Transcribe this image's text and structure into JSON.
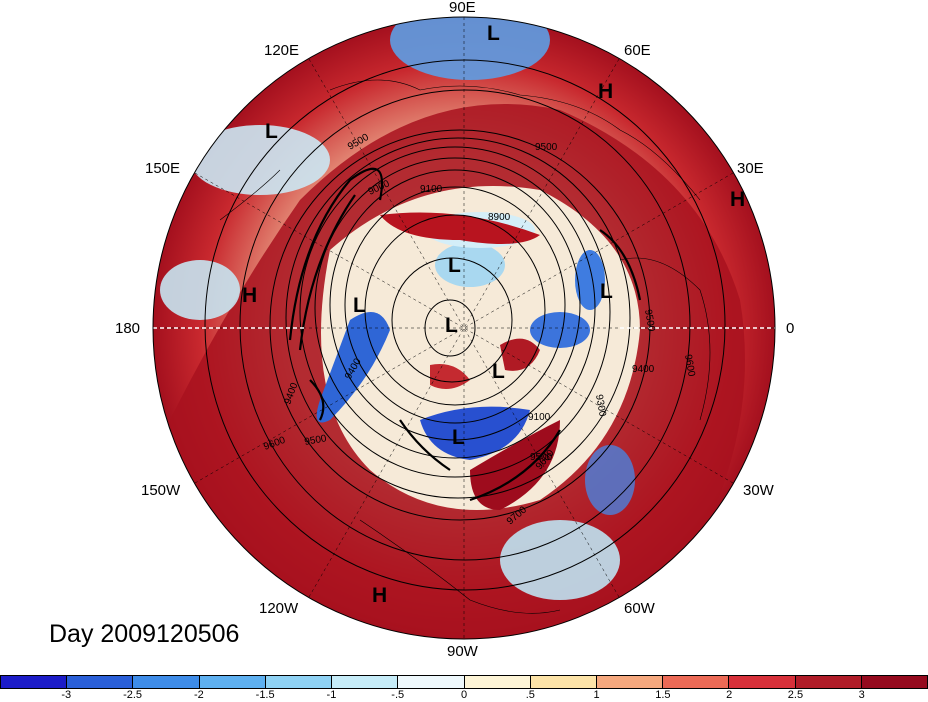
{
  "map": {
    "projection": "polar stereographic (North Pole)",
    "longitude_labels": [
      "90E",
      "60E",
      "30E",
      "0",
      "30W",
      "60W",
      "90W",
      "120W",
      "150W",
      "180",
      "150E",
      "120E"
    ],
    "pressure_systems": [
      "L",
      "H",
      "L",
      "H",
      "H",
      "L",
      "L",
      "L",
      "L",
      "L",
      "L",
      "H"
    ],
    "contour_labels": [
      "9500",
      "9500",
      "9000",
      "9100",
      "8900",
      "9500",
      "9600",
      "9400",
      "9300",
      "9400",
      "9500",
      "9600",
      "9400",
      "9500",
      "9600",
      "9700",
      "9100"
    ],
    "day_label": "Day 2009120506"
  },
  "colorbar": {
    "ticks": [
      "-3",
      "-2.5",
      "-2",
      "-1.5",
      "-1",
      "-.5",
      "0",
      ".5",
      "1",
      "1.5",
      "2",
      "2.5",
      "3"
    ],
    "colors": [
      "#1c1cc8",
      "#2a5fd8",
      "#3e8ce8",
      "#5eb0f0",
      "#8fd2f4",
      "#c6ecf8",
      "#eef8fc",
      "#fdf4d6",
      "#fce3a8",
      "#f5a87e",
      "#ec6a56",
      "#d7303a",
      "#b01c28",
      "#950a1e"
    ]
  }
}
